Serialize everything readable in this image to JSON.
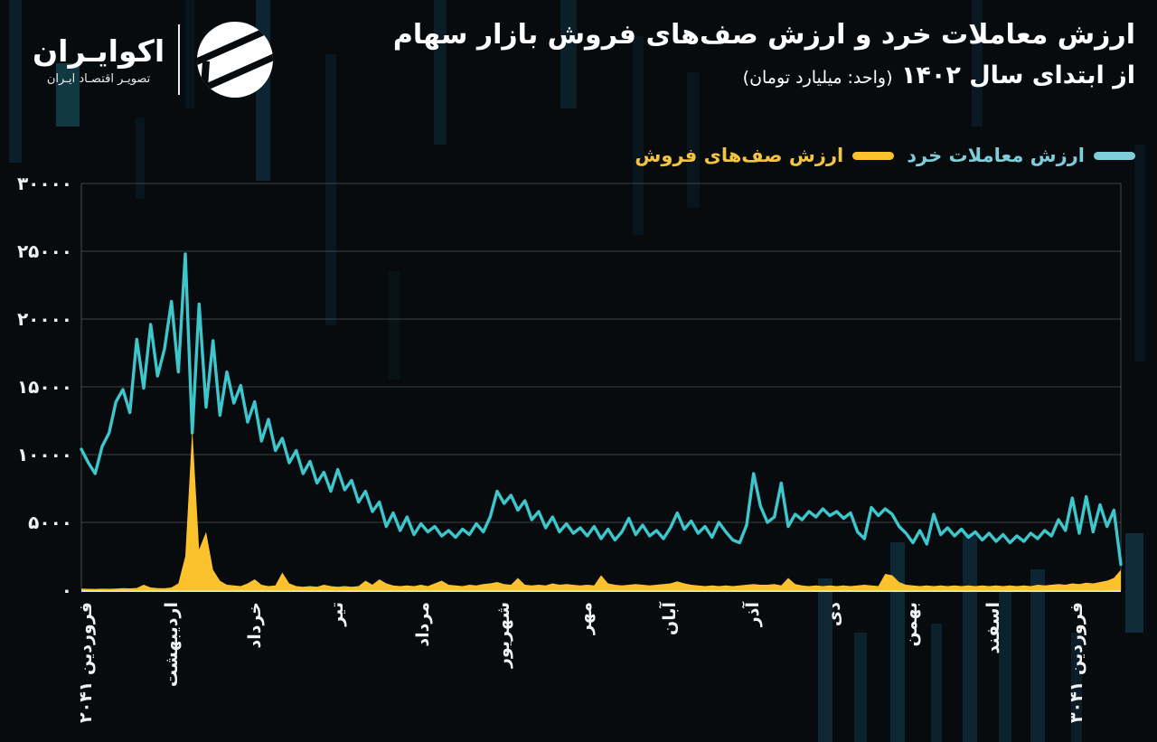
{
  "header": {
    "logo": {
      "name": "اکوایـران",
      "tagline": "تصویـر اقتصـاد ایـران"
    },
    "title_line1": "ارزش معاملات خرد و ارزش صف‌های فروش بازار سهام",
    "title_line2_bold": "از ابتدای سال ۱۴۰۲",
    "title_line2_note": "(واحد: میلیارد تومان)"
  },
  "legend": [
    {
      "label": "ارزش معاملات خرد",
      "color": "#3dc6cc",
      "label_color": "#7ecdd8"
    },
    {
      "label": "ارزش صف‌های فروش",
      "color": "#fcc22e",
      "label_color": "#f5c43e"
    }
  ],
  "chart_data": {
    "type": "line",
    "title": "ارزش معاملات خرد و ارزش صف‌های فروش بازار سهام از ابتدای سال ۱۴۰۲",
    "unit": "میلیارد تومان",
    "ylim": [
      0,
      30000
    ],
    "grid": "horizontal",
    "legend_position": "top-right",
    "y_ticks": [
      {
        "value": 0,
        "label": "۰"
      },
      {
        "value": 5000,
        "label": "۵۰۰۰"
      },
      {
        "value": 10000,
        "label": "۱۰۰۰۰"
      },
      {
        "value": 15000,
        "label": "۱۵۰۰۰"
      },
      {
        "value": 20000,
        "label": "۲۰۰۰۰"
      },
      {
        "value": 25000,
        "label": "۲۵۰۰۰"
      },
      {
        "value": 30000,
        "label": "۳۰۰۰۰"
      }
    ],
    "x_ticks": [
      {
        "label": "فروردین ۱۴۰۲",
        "pos": 0.004
      },
      {
        "label": "اردیبهشت",
        "pos": 0.087
      },
      {
        "label": "خرداد",
        "pos": 0.167
      },
      {
        "label": "تیر",
        "pos": 0.246
      },
      {
        "label": "مرداد",
        "pos": 0.329
      },
      {
        "label": "شهریور",
        "pos": 0.406
      },
      {
        "label": "مهر",
        "pos": 0.485
      },
      {
        "label": "آبان",
        "pos": 0.566
      },
      {
        "label": "آذر",
        "pos": 0.646
      },
      {
        "label": "دی",
        "pos": 0.724
      },
      {
        "label": "بهمن",
        "pos": 0.798
      },
      {
        "label": "اسفند",
        "pos": 0.877
      },
      {
        "label": "فروردین ۱۴۰۳",
        "pos": 0.957
      }
    ],
    "series": [
      {
        "name": "ارزش معاملات خرد",
        "type": "line",
        "color": "#3dc6cc",
        "values": [
          10400,
          9400,
          8600,
          10600,
          11600,
          13900,
          14800,
          13100,
          18500,
          14900,
          19600,
          15800,
          17800,
          21300,
          16100,
          24800,
          11600,
          21100,
          13500,
          18400,
          12900,
          16100,
          13800,
          15100,
          12400,
          13900,
          11000,
          12600,
          10300,
          11200,
          9400,
          10300,
          8600,
          9500,
          7900,
          8700,
          7300,
          8900,
          7400,
          8100,
          6500,
          7300,
          5800,
          6500,
          4700,
          5700,
          4400,
          5400,
          4100,
          4900,
          4300,
          4700,
          4000,
          4400,
          3900,
          4500,
          4100,
          4900,
          4300,
          5400,
          7300,
          6400,
          7000,
          5900,
          6600,
          5200,
          5800,
          4600,
          5400,
          4300,
          4900,
          4200,
          4600,
          4000,
          4700,
          3800,
          4500,
          3700,
          4300,
          5300,
          4100,
          4800,
          4000,
          4400,
          3800,
          4600,
          5700,
          4500,
          5100,
          4200,
          4700,
          3900,
          5000,
          4300,
          3700,
          3500,
          4800,
          8600,
          6200,
          5000,
          5400,
          7900,
          4700,
          5600,
          5200,
          5800,
          5400,
          6000,
          5500,
          5800,
          5300,
          5700,
          4300,
          3800,
          6100,
          5500,
          6000,
          5600,
          4700,
          4200,
          3500,
          4400,
          3400,
          5600,
          4100,
          4600,
          4000,
          4500,
          3900,
          4300,
          3700,
          4200,
          3600,
          4100,
          3500,
          4000,
          3600,
          4200,
          3800,
          4400,
          4000,
          5200,
          4400,
          6800,
          4200,
          6900,
          4300,
          6300,
          4700,
          5900,
          1900
        ]
      },
      {
        "name": "ارزش صف‌های فروش",
        "type": "area",
        "color": "#fcc22e",
        "values": [
          120,
          100,
          90,
          110,
          100,
          120,
          150,
          130,
          160,
          400,
          200,
          150,
          140,
          200,
          500,
          2500,
          11900,
          3000,
          4300,
          1500,
          700,
          400,
          350,
          300,
          500,
          800,
          400,
          300,
          350,
          1300,
          500,
          300,
          250,
          300,
          250,
          400,
          300,
          250,
          300,
          250,
          300,
          700,
          400,
          800,
          500,
          350,
          300,
          350,
          300,
          400,
          300,
          500,
          700,
          400,
          350,
          300,
          400,
          350,
          450,
          500,
          600,
          450,
          400,
          900,
          400,
          350,
          400,
          350,
          500,
          400,
          450,
          400,
          350,
          400,
          350,
          1100,
          500,
          400,
          350,
          400,
          450,
          400,
          350,
          400,
          450,
          500,
          650,
          500,
          400,
          350,
          300,
          350,
          300,
          350,
          300,
          350,
          400,
          450,
          400,
          400,
          450,
          350,
          900,
          450,
          350,
          300,
          350,
          300,
          350,
          300,
          350,
          300,
          350,
          400,
          350,
          300,
          1200,
          1100,
          600,
          400,
          350,
          300,
          350,
          300,
          350,
          300,
          350,
          300,
          350,
          300,
          350,
          300,
          350,
          300,
          350,
          300,
          350,
          300,
          400,
          350,
          400,
          450,
          400,
          500,
          450,
          550,
          500,
          600,
          700,
          900,
          1500
        ]
      }
    ]
  }
}
